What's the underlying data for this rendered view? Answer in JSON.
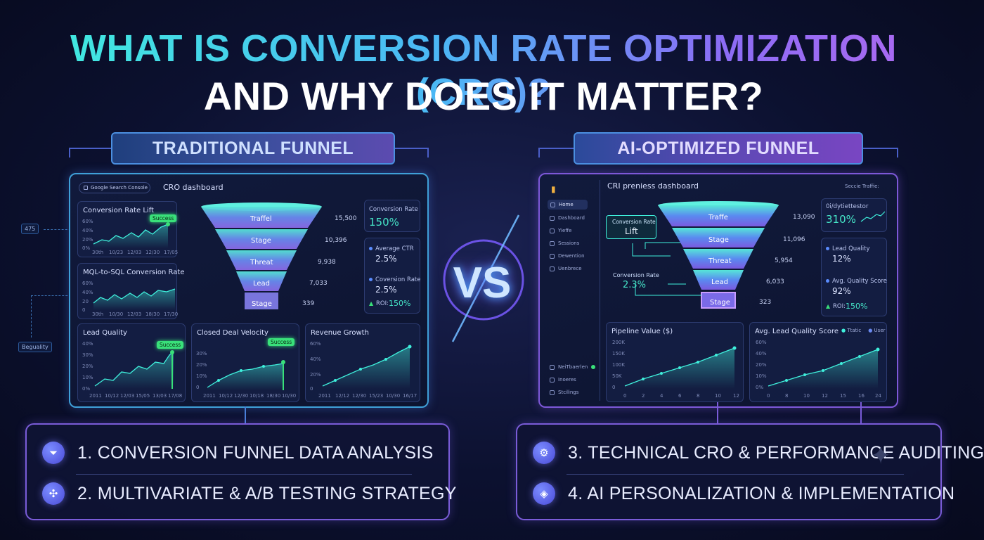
{
  "title": {
    "line1": "WHAT IS CONVERSION RATE OPTIMIZATION (CRO)?",
    "line2": "AND WHY DOES IT MATTER?"
  },
  "vs_label": "VS",
  "left": {
    "label": "TRADITIONAL FUNNEL",
    "tab_label": "Google Search Console",
    "dashboard_title": "CRO dashboard",
    "side_nodes": [
      "475",
      "Beguality"
    ],
    "cards": {
      "conversion_rate_lift": {
        "title": "Conversion Rate Lift",
        "badge": "Success",
        "y_ticks": [
          "60%",
          "40%",
          "20%",
          "0%"
        ],
        "x_ticks": [
          "30th",
          "10/23",
          "12/03",
          "12/30",
          "17/05"
        ]
      },
      "mql_sql": {
        "title": "MQL-to-SQL Conversion Rate",
        "y_ticks": [
          "60%",
          "40%",
          "20",
          "0"
        ],
        "x_ticks": [
          "30th",
          "10/30",
          "12/03",
          "18/30",
          "17/30"
        ]
      },
      "lead_quality": {
        "title": "Lead Quality",
        "badge": "Success",
        "y_ticks": [
          "40%",
          "30%",
          "20%",
          "10%",
          "0%"
        ],
        "x_ticks": [
          "2011",
          "10/12",
          "12/03",
          "15/05",
          "13/03",
          "17/08"
        ]
      },
      "closed_deal": {
        "title": "Closed Deal Velocity",
        "badge": "Success",
        "y_ticks": [
          "30%",
          "20%",
          "10%",
          "0"
        ],
        "x_ticks": [
          "2011",
          "10/12",
          "12/30",
          "10/18",
          "18/30",
          "10/30"
        ]
      },
      "revenue_growth": {
        "title": "Revenue Growth",
        "y_ticks": [
          "60%",
          "40%",
          "20%",
          "0"
        ],
        "x_ticks": [
          "2011",
          "12/12",
          "12/30",
          "15/23",
          "10/30",
          "16/17"
        ]
      }
    },
    "funnel": [
      {
        "stage": "Traffel",
        "value": "15,500"
      },
      {
        "stage": "Stage",
        "value": "10,396"
      },
      {
        "stage": "Threat",
        "value": "9,938"
      },
      {
        "stage": "Lead",
        "value": "7,033"
      },
      {
        "stage": "Stage",
        "value": "339"
      }
    ],
    "stats": {
      "conversion_rate_label": "Conversion Rate",
      "conversion_rate_value": "150%",
      "avg_ctr_label": "Average CTR",
      "avg_ctr_value": "2.5%",
      "coversion_rate_label": "Coversion Rate",
      "coversion_rate_value": "2.5%",
      "roi_label": "ROI:",
      "roi_value": "150%"
    }
  },
  "right": {
    "label": "AI-OPTIMIZED FUNNEL",
    "dashboard_title": "CRI preniess dashboard",
    "top_right": "Seccie Traffie: ",
    "sidebar": [
      "Home",
      "Dashboard",
      "Yieffe",
      "Sessions",
      "Dewention",
      "Uenbrece"
    ],
    "sidebar_bottom": [
      "NeiTbaerlen",
      "Inoeres",
      "Stcilings"
    ],
    "funnel": [
      {
        "stage": "Traffe",
        "value": "13,090"
      },
      {
        "stage": "Stage",
        "value": "11,096"
      },
      {
        "stage": "Threat",
        "value": "5,954"
      },
      {
        "stage": "Lead",
        "value": "6,033"
      },
      {
        "stage": "Stage",
        "value": "323"
      }
    ],
    "conversion_lift": {
      "label": "Conversion Rate",
      "value": "Lift"
    },
    "conversion_rate": {
      "label": "Conversion Rate",
      "value": "2.3%"
    },
    "stats": {
      "top_label": "0i/dytiettestor",
      "top_value": "310%",
      "lead_quality_label": "Lead Quality",
      "lead_quality_value": "12%",
      "avg_quality_label": "Avg. Quality Score",
      "avg_quality_value": "92%",
      "roi_label": "ROI:",
      "roi_value": "150%"
    },
    "cards": {
      "pipeline": {
        "title": "Pipeline Value ($)",
        "y_ticks": [
          "200K",
          "150K",
          "100K",
          "50K",
          "0"
        ],
        "x_ticks": [
          "0",
          "2",
          "4",
          "6",
          "8",
          "10",
          "12"
        ]
      },
      "avg_lead": {
        "title": "Avg. Lead Quality Score",
        "legend": [
          "Ttatic",
          "User"
        ],
        "y_ticks": [
          "60%",
          "40%",
          "20%",
          "10%",
          "0%"
        ],
        "x_ticks": [
          "0",
          "8",
          "10",
          "12",
          "15",
          "16",
          "24"
        ]
      }
    }
  },
  "services": {
    "left": [
      "1. CONVERSION FUNNEL DATA ANALYSIS",
      "2. MULTIVARIATE & A/B TESTING STRATEGY"
    ],
    "right": [
      "3. TECHNICAL CRO & PERFORMANCE AUDITING",
      "4. AI PERSONALIZATION & IMPLEMENTATION"
    ]
  },
  "colors": {
    "accent_cyan": "#3ff0dc",
    "accent_purple": "#b369f0",
    "success_green": "#39e07a"
  },
  "icons": [
    "funnel-icon",
    "network-icon",
    "gear-icon",
    "brain-chip-icon"
  ]
}
